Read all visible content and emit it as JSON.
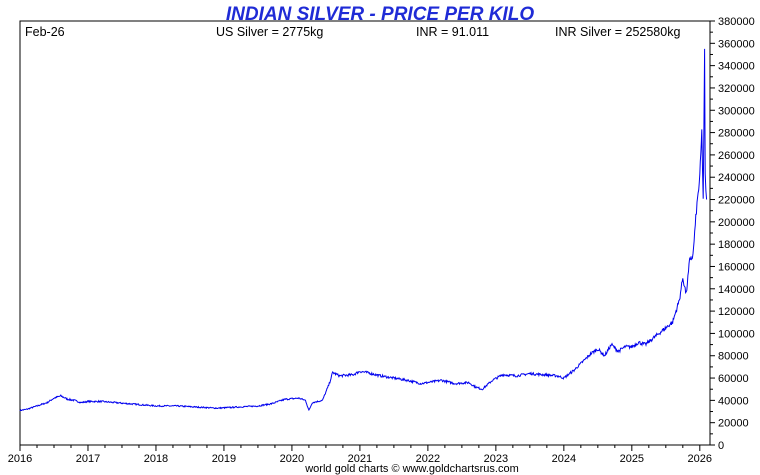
{
  "header": {
    "title": "INDIAN SILVER - PRICE PER KILO",
    "date": "Feb-26",
    "us_silver": "US Silver = 2775kg",
    "inr_rate": "INR = 91.011",
    "inr_silver": "INR Silver = 252580kg"
  },
  "footer": {
    "credit": "world gold charts © www.goldchartsrus.com"
  },
  "colors": {
    "title": "#1f2bd6",
    "line": "#0000ee",
    "axis": "#000000"
  },
  "chart_data": {
    "type": "line",
    "title": "INDIAN SILVER - PRICE PER KILO",
    "xlabel": "",
    "ylabel": "",
    "x_ticks": [
      "2016",
      "2017",
      "2018",
      "2019",
      "2020",
      "2021",
      "2022",
      "2023",
      "2024",
      "2025",
      "2026"
    ],
    "y_ticks": [
      "0",
      "20000",
      "40000",
      "60000",
      "80000",
      "100000",
      "120000",
      "140000",
      "160000",
      "180000",
      "200000",
      "220000",
      "240000",
      "260000",
      "280000",
      "300000",
      "320000",
      "340000",
      "360000",
      "380000"
    ],
    "xlim": [
      2016.0,
      2026.15
    ],
    "ylim": [
      0,
      380000
    ],
    "grid": false,
    "y_axis_side": "right",
    "series": [
      {
        "x": [
          2016.0,
          2016.1,
          2016.2,
          2016.3,
          2016.4,
          2016.5,
          2016.6,
          2016.7,
          2016.8,
          2016.9,
          2017.0,
          2017.2,
          2017.4,
          2017.6,
          2017.8,
          2018.0,
          2018.3,
          2018.6,
          2018.9,
          2019.2,
          2019.5,
          2019.7,
          2019.9,
          2020.1,
          2020.2,
          2020.25,
          2020.3,
          2020.45,
          2020.55,
          2020.6,
          2020.7,
          2020.9,
          2021.0,
          2021.1,
          2021.3,
          2021.5,
          2021.7,
          2021.9,
          2022.0,
          2022.2,
          2022.4,
          2022.6,
          2022.7,
          2022.8,
          2022.95,
          2023.1,
          2023.3,
          2023.5,
          2023.7,
          2023.9,
          2024.0,
          2024.15,
          2024.3,
          2024.4,
          2024.5,
          2024.6,
          2024.7,
          2024.8,
          2024.9,
          2025.0,
          2025.1,
          2025.2,
          2025.3,
          2025.4,
          2025.5,
          2025.6,
          2025.7,
          2025.75,
          2025.8,
          2025.85,
          2025.9,
          2025.95,
          2026.0,
          2026.03,
          2026.05,
          2026.07,
          2026.08,
          2026.1
        ],
        "y": [
          31000,
          32000,
          34000,
          36000,
          38000,
          42000,
          44000,
          41000,
          40000,
          38000,
          39000,
          39000,
          38000,
          37000,
          36000,
          35000,
          35000,
          34000,
          33000,
          34000,
          35000,
          37000,
          41000,
          42000,
          40000,
          31000,
          38000,
          40000,
          55000,
          65000,
          62000,
          63000,
          66000,
          65000,
          62000,
          60000,
          58000,
          55000,
          56000,
          58000,
          55000,
          56000,
          52000,
          50000,
          58000,
          63000,
          62000,
          64000,
          63000,
          62000,
          60000,
          67000,
          76000,
          82000,
          86000,
          80000,
          90000,
          84000,
          88000,
          88000,
          92000,
          90000,
          95000,
          100000,
          105000,
          110000,
          130000,
          150000,
          135000,
          165000,
          170000,
          210000,
          240000,
          280000,
          220000,
          350000,
          240000,
          220000
        ]
      }
    ]
  }
}
